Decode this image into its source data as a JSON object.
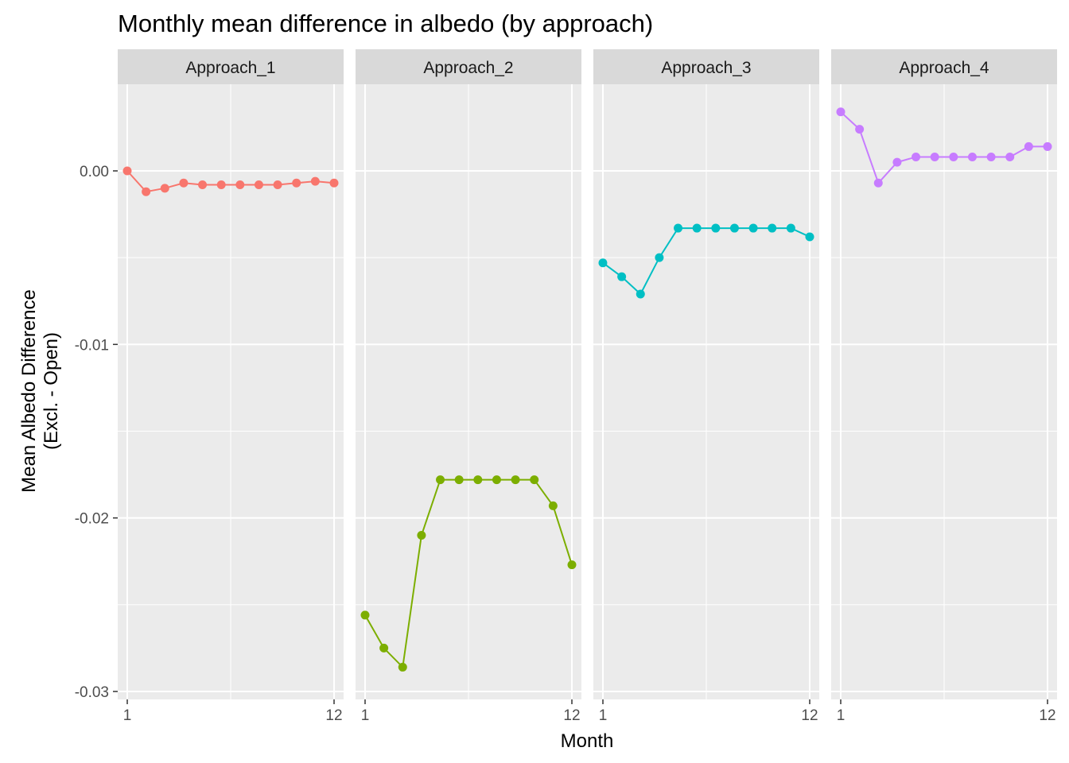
{
  "chart_data": {
    "type": "line",
    "title": "Monthly mean difference in albedo (by approach)",
    "xlabel": "Month",
    "ylabel_lines": [
      "Mean Albedo Difference",
      "(Excl. - Open)"
    ],
    "x": [
      1,
      2,
      3,
      4,
      5,
      6,
      7,
      8,
      9,
      10,
      11,
      12
    ],
    "xlim": [
      1,
      12
    ],
    "x_tick_labels": [
      "1",
      "12"
    ],
    "ylim": [
      -0.03,
      0.0
    ],
    "y_ticks": [
      0.0,
      -0.01,
      -0.02,
      -0.03
    ],
    "y_tick_labels": [
      "0.00",
      "-0.01",
      "-0.02",
      "-0.03"
    ],
    "grid": true,
    "facets": [
      {
        "label": "Approach_1",
        "color": "#F8766D",
        "values": [
          0.0,
          -0.0012,
          -0.001,
          -0.0007,
          -0.0008,
          -0.0008,
          -0.0008,
          -0.0008,
          -0.0008,
          -0.0007,
          -0.0006,
          -0.0007
        ]
      },
      {
        "label": "Approach_2",
        "color": "#7CAE00",
        "values": [
          -0.0256,
          -0.0275,
          -0.0286,
          -0.021,
          -0.0178,
          -0.0178,
          -0.0178,
          -0.0178,
          -0.0178,
          -0.0178,
          -0.0193,
          -0.0227
        ]
      },
      {
        "label": "Approach_3",
        "color": "#00BFC4",
        "values": [
          -0.0053,
          -0.0061,
          -0.0071,
          -0.005,
          -0.0033,
          -0.0033,
          -0.0033,
          -0.0033,
          -0.0033,
          -0.0033,
          -0.0033,
          -0.0038
        ]
      },
      {
        "label": "Approach_4",
        "color": "#C77CFF",
        "values": [
          0.0034,
          0.0024,
          -0.0007,
          0.0005,
          0.0008,
          0.0008,
          0.0008,
          0.0008,
          0.0008,
          0.0008,
          0.0014,
          0.0014
        ]
      }
    ]
  }
}
